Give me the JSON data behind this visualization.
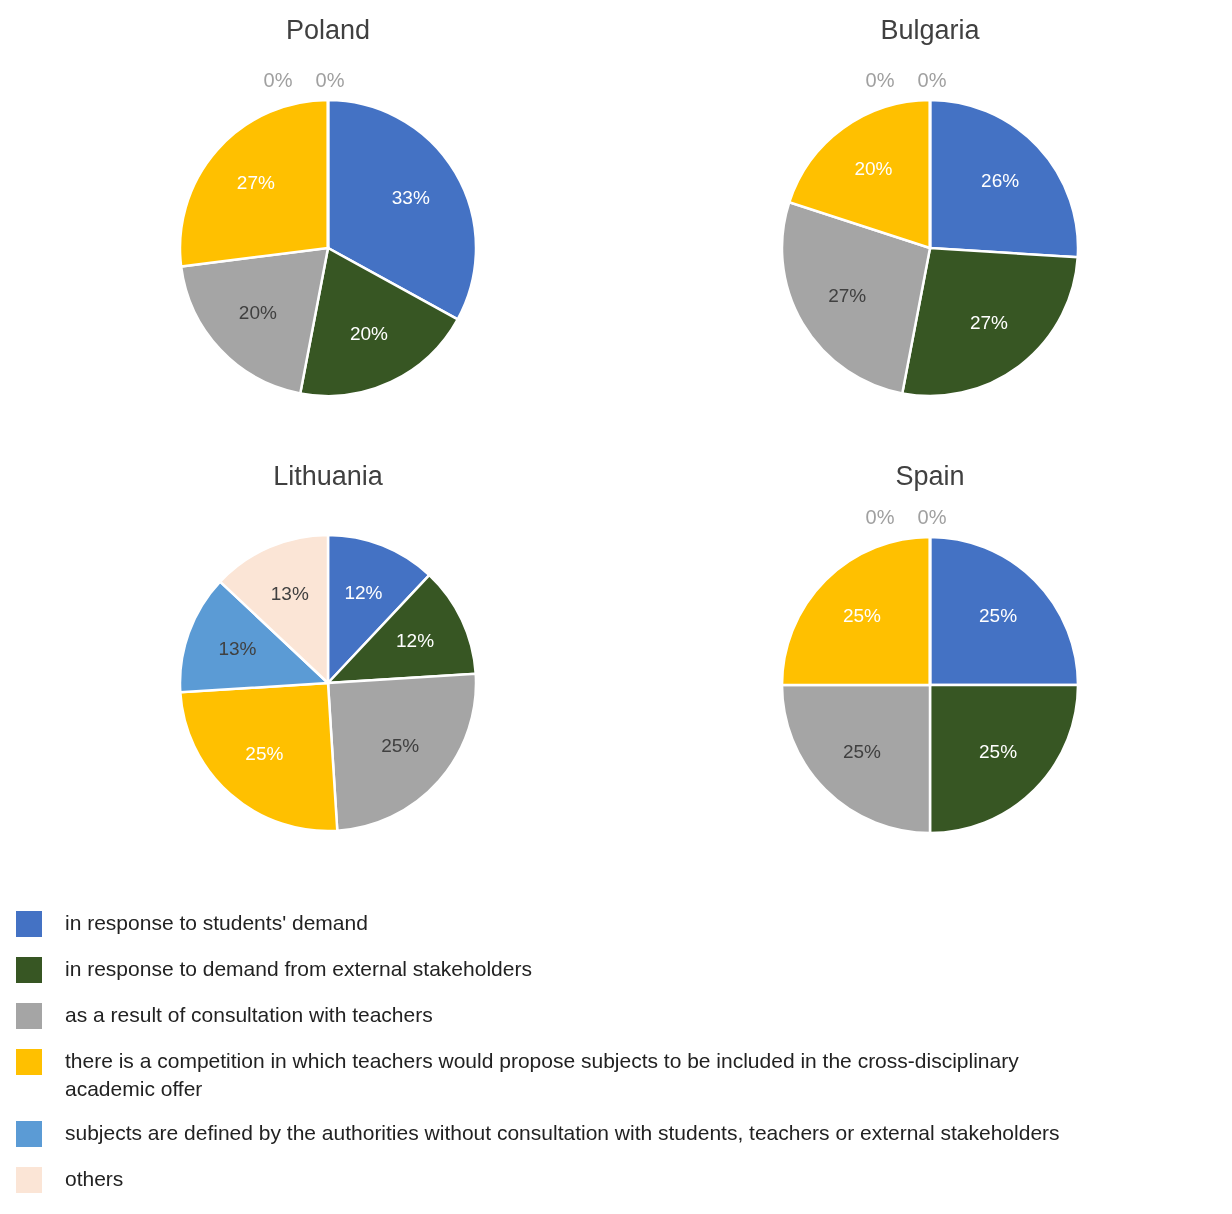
{
  "chart_data": [
    {
      "type": "pie",
      "title": "Poland",
      "categories": [
        "in response to students' demand",
        "in response to demand from external stakeholders",
        "as a result of consultation with teachers",
        "there is a competition in which teachers would propose subjects to be included in the cross-disciplinary academic offer",
        "subjects are defined by the authorities without consultation with students, teachers or external stakeholders",
        "others"
      ],
      "values": [
        33,
        20,
        20,
        27,
        0,
        0
      ],
      "colors": [
        "#4472c4",
        "#375623",
        "#a5a5a5",
        "#ffc000",
        "#5b9bd5",
        "#fbe5d6"
      ],
      "value_labels": [
        "33%",
        "20%",
        "20%",
        "27%",
        "0%",
        "0%"
      ],
      "legend": "bottom"
    },
    {
      "type": "pie",
      "title": "Bulgaria",
      "categories": [
        null,
        null,
        null,
        null,
        null,
        null
      ],
      "values": [
        26,
        27,
        27,
        20,
        0,
        0
      ],
      "colors": [
        "#4472c4",
        "#375623",
        "#a5a5a5",
        "#ffc000",
        "#5b9bd5",
        "#fbe5d6"
      ],
      "value_labels": [
        "26%",
        "27%",
        "27%",
        "20%",
        "0%",
        "0%"
      ]
    },
    {
      "type": "pie",
      "title": "Lithuania",
      "categories": [
        null,
        null,
        null,
        null,
        null,
        null
      ],
      "values": [
        12,
        12,
        25,
        25,
        13,
        13
      ],
      "colors": [
        "#4472c4",
        "#375623",
        "#a5a5a5",
        "#ffc000",
        "#5b9bd5",
        "#fbe5d6"
      ],
      "value_labels": [
        "12%",
        "12%",
        "25%",
        "25%",
        "13%",
        "13%"
      ]
    },
    {
      "type": "pie",
      "title": "Spain",
      "categories": [
        null,
        null,
        null,
        null,
        null,
        null
      ],
      "values": [
        25,
        25,
        25,
        25,
        0,
        0
      ],
      "colors": [
        "#4472c4",
        "#375623",
        "#a5a5a5",
        "#ffc000",
        "#5b9bd5",
        "#fbe5d6"
      ],
      "value_labels": [
        "25%",
        "25%",
        "25%",
        "25%",
        "0%",
        "0%"
      ]
    }
  ]
}
